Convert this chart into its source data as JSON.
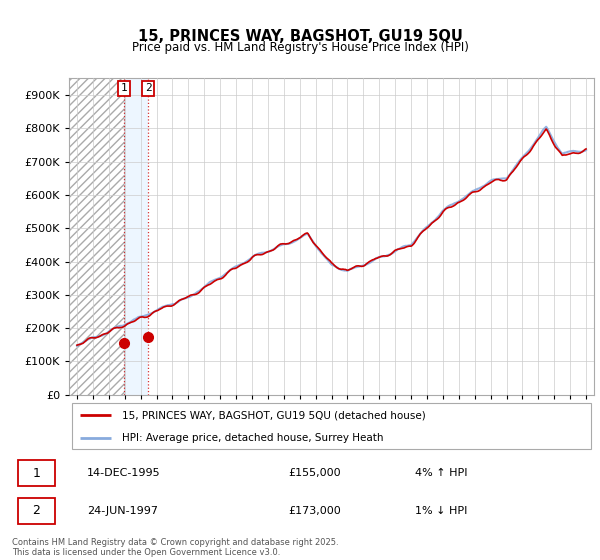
{
  "title": "15, PRINCES WAY, BAGSHOT, GU19 5QU",
  "subtitle": "Price paid vs. HM Land Registry's House Price Index (HPI)",
  "legend_line1": "15, PRINCES WAY, BAGSHOT, GU19 5QU (detached house)",
  "legend_line2": "HPI: Average price, detached house, Surrey Heath",
  "annotation1_date": "14-DEC-1995",
  "annotation1_price": "£155,000",
  "annotation1_hpi": "4% ↑ HPI",
  "annotation2_date": "24-JUN-1997",
  "annotation2_price": "£173,000",
  "annotation2_hpi": "1% ↓ HPI",
  "footer": "Contains HM Land Registry data © Crown copyright and database right 2025.\nThis data is licensed under the Open Government Licence v3.0.",
  "sale1_year": 1995.96,
  "sale1_value": 155000,
  "sale2_year": 1997.48,
  "sale2_value": 173000,
  "red_line_color": "#cc0000",
  "blue_line_color": "#88aadd",
  "background_color": "#ffffff",
  "grid_color": "#cccccc",
  "annotation_box_color": "#cc0000",
  "ylim_min": 0,
  "ylim_max": 950000,
  "xlim_min": 1992.5,
  "xlim_max": 2025.5
}
